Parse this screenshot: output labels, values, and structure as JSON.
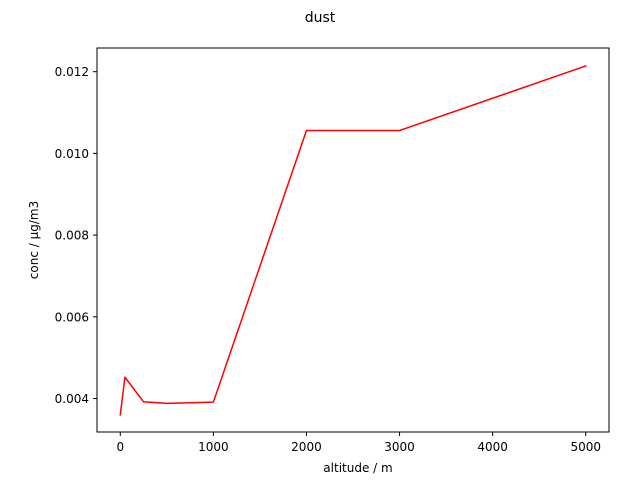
{
  "chart_data": {
    "type": "line",
    "title": "dust",
    "xlabel": "altitude / m",
    "ylabel": "conc / µg/m3",
    "xlim": [
      -250,
      5250
    ],
    "ylim": [
      0.00318,
      0.01258
    ],
    "xticks": [
      0,
      1000,
      2000,
      3000,
      4000,
      5000
    ],
    "xtick_labels": [
      "0",
      "1000",
      "2000",
      "3000",
      "4000",
      "5000"
    ],
    "yticks": [
      0.004,
      0.006,
      0.008,
      0.01,
      0.012
    ],
    "ytick_labels": [
      "0.004",
      "0.006",
      "0.008",
      "0.010",
      "0.012"
    ],
    "grid": false,
    "series": [
      {
        "color": "#ff0000",
        "x": [
          0,
          50,
          250,
          500,
          1000,
          2000,
          3000,
          5000
        ],
        "y": [
          0.0036,
          0.00452,
          0.00392,
          0.00388,
          0.00391,
          0.01056,
          0.01056,
          0.01214
        ]
      }
    ]
  }
}
